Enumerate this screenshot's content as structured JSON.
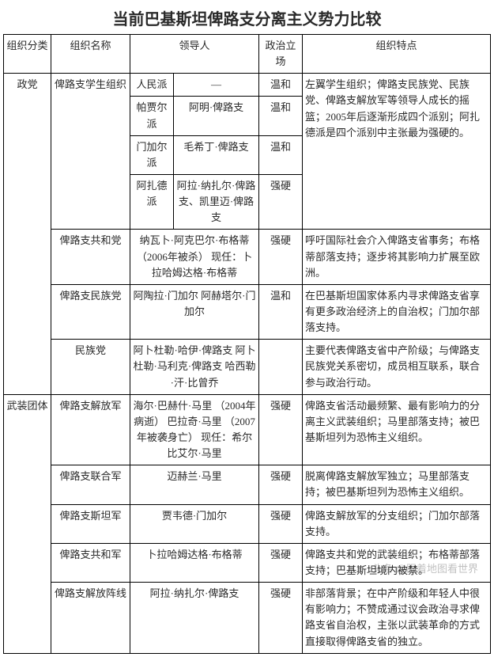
{
  "title": "当前巴基斯坦俾路支分离主义势力比较",
  "headers": {
    "c1": "组织分类",
    "c2": "组织名称",
    "c3": "领导人",
    "c4": "政治立场",
    "c5": "组织特点"
  },
  "cat": {
    "party": "政党",
    "armed": "武装团体"
  },
  "r1": {
    "org": "俾路支学生组织",
    "faction": "人民派",
    "leader": "—",
    "stance": "温和",
    "desc": "左翼学生组织；俾路支民族党、民族党、俾路支解放军等领导人成长的摇篮；2005年后逐渐形成四个派别；阿扎德派是四个派别中主张最为强硬的。"
  },
  "r2": {
    "faction": "帕贾尔派",
    "leader": "阿明·俾路支",
    "stance": "温和"
  },
  "r3": {
    "faction": "门加尔派",
    "leader": "毛希丁·俾路支",
    "stance": "温和"
  },
  "r4": {
    "faction": "阿扎德派",
    "leader": "阿拉·纳扎尔·俾路支、凯里迈·俾路支",
    "stance": "强硬"
  },
  "r5": {
    "org": "俾路支共和党",
    "leader": "纳瓦卜·阿克巴尔·布格蒂（2006年被杀）\n现任：卜拉哈姆达格·布格蒂",
    "stance": "强硬",
    "desc": "呼吁国际社会介入俾路支省事务；布格蒂部落支持；逐步将其影响力扩展至欧洲。"
  },
  "r6": {
    "org": "俾路支民族党",
    "leader": "阿陶拉·门加尔\n\n阿赫塔尔·门加尔",
    "stance": "温和",
    "desc": "在巴基斯坦国家体系内寻求俾路支省享有更多政治经济上的自治权；门加尔部落支持。"
  },
  "r7": {
    "org": "民族党",
    "leader": "阿卜杜勒·哈伊·俾路支\n阿卜杜勒·马利克·俾路支\n哈西勒·汗·比曾乔",
    "stance": "",
    "desc": "主要代表俾路支省中产阶级；与俾路支民族党关系密切，成员相互联系，联合参与政治行动。"
  },
  "r8": {
    "org": "俾路支解放军",
    "leader": "海尔·巴赫什·马里\n（2004年病逝）\n巴拉奇·马里\n（2007年被袭身亡）\n现任：希尔比艾尔·马里",
    "stance": "强硬",
    "desc": "俾路支省活动最频繁、最有影响力的分离主义武装组织；马里部落支持；被巴基斯坦列为恐怖主义组织。"
  },
  "r9": {
    "org": "俾路支联合军",
    "leader": "迈赫兰·马里",
    "stance": "强硬",
    "desc": "脱离俾路支解放军独立；马里部落支持；被巴基斯坦列为恐怖主义组织。"
  },
  "r10": {
    "org": "俾路支斯坦军",
    "leader": "贾韦德·门加尔",
    "stance": "强硬",
    "desc": "俾路支解放军的分支组织；门加尔部落支持。"
  },
  "r11": {
    "org": "俾路支共和军",
    "leader": "卜拉哈姆达格·布格蒂",
    "stance": "强硬",
    "desc": "俾路支共和党的武装组织；布格蒂部落支持；巴基斯坦境内被禁。"
  },
  "r12": {
    "org": "俾路支解放阵线",
    "leader": "阿拉·纳扎尔·俾路支",
    "stance": "强硬",
    "desc": "非部落背景；在中产阶级和年轻人中很有影响力；不赞成通过议会政治寻求俾路支省自治权，主张以武装革命的方式直接取得俾路支省的独立。"
  },
  "watermark": "头条 @跟着地图看世界"
}
